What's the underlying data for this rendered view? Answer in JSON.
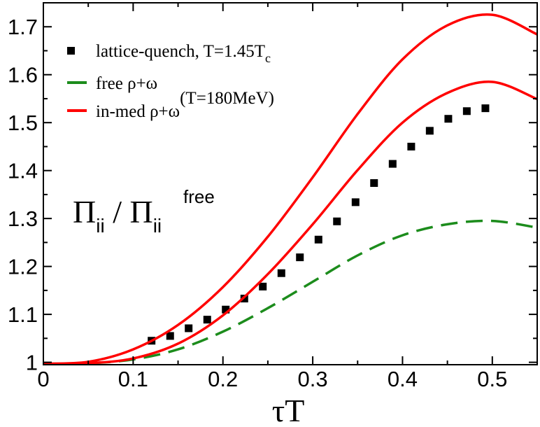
{
  "chart_data": {
    "type": "line",
    "title": "",
    "xlabel": "τT",
    "ylabel": "",
    "xlim": [
      0,
      0.55
    ],
    "ylim": [
      0.995,
      1.75
    ],
    "xticks": [
      0,
      0.1,
      0.2,
      0.3,
      0.4,
      0.5
    ],
    "xtick_labels": [
      "0",
      "0.1",
      "0.2",
      "0.3",
      "0.4",
      "0.5"
    ],
    "yticks": [
      1,
      1.1,
      1.2,
      1.3,
      1.4,
      1.5,
      1.6,
      1.7
    ],
    "ytick_labels": [
      "1",
      "1.1",
      "1.2",
      "1.3",
      "1.4",
      "1.5",
      "1.6",
      "1.7"
    ],
    "annotation": {
      "main": "Π",
      "sub": "ii",
      "slash": " / ",
      "main2": "Π",
      "sub2": "ii",
      "sup2": "free"
    },
    "series": [
      {
        "name": "lattice-quench, T=1.45T",
        "name_sub": "c",
        "style": "markers",
        "color": "#000000",
        "x": [
          0.1205,
          0.1412,
          0.1618,
          0.1825,
          0.2031,
          0.2238,
          0.2444,
          0.2651,
          0.2857,
          0.3064,
          0.327,
          0.3477,
          0.3683,
          0.389,
          0.4097,
          0.4303,
          0.451,
          0.4716,
          0.4923
        ],
        "y": [
          1.045,
          1.055,
          1.071,
          1.089,
          1.11,
          1.133,
          1.158,
          1.186,
          1.219,
          1.256,
          1.294,
          1.334,
          1.374,
          1.414,
          1.45,
          1.483,
          1.508,
          1.524,
          1.53
        ]
      },
      {
        "name": "free ρ+ω",
        "style": "dashed",
        "color": "#1c8c1c",
        "x": [
          0.0,
          0.05,
          0.1,
          0.15,
          0.2,
          0.25,
          0.3,
          0.35,
          0.4,
          0.45,
          0.5,
          0.55
        ],
        "y": [
          0.997,
          0.998,
          1.006,
          1.027,
          1.064,
          1.113,
          1.168,
          1.223,
          1.265,
          1.288,
          1.295,
          1.281
        ]
      },
      {
        "name": "in-med ρ+ω",
        "name_sup": "(T=180MeV)",
        "style": "solid",
        "color": "#ff0000",
        "x": [
          0.0,
          0.05,
          0.1,
          0.15,
          0.2,
          0.25,
          0.3,
          0.35,
          0.4,
          0.45,
          0.5,
          0.55
        ],
        "y": [
          0.997,
          0.998,
          1.008,
          1.039,
          1.098,
          1.184,
          1.288,
          1.401,
          1.5,
          1.562,
          1.585,
          1.549
        ]
      },
      {
        "name": "",
        "style": "solid",
        "color": "#ff0000",
        "x": [
          0.0,
          0.05,
          0.1,
          0.15,
          0.2,
          0.25,
          0.3,
          0.35,
          0.4,
          0.45,
          0.5,
          0.55
        ],
        "y": [
          0.997,
          1.001,
          1.027,
          1.078,
          1.157,
          1.262,
          1.386,
          1.518,
          1.632,
          1.703,
          1.725,
          1.684
        ]
      }
    ]
  }
}
